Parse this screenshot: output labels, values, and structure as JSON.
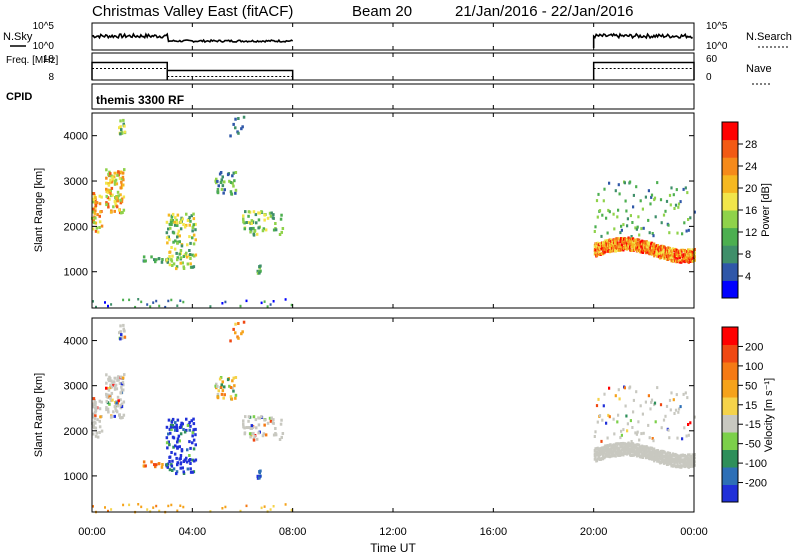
{
  "title": {
    "station": "Christmas Valley East (fitACF)",
    "beam": "Beam 20",
    "dates": "21/Jan/2016 - 22/Jan/2016"
  },
  "colors": {
    "power": [
      "#0000ff",
      "#2f57a8",
      "#3f8f6a",
      "#4caf50",
      "#8fd24a",
      "#f2e64a",
      "#f5b820",
      "#f58a1a",
      "#f25a14",
      "#ff0000"
    ],
    "velocity": [
      "#2030d8",
      "#2d6fb6",
      "#2e8f5a",
      "#7cd04a",
      "#c8c8c0",
      "#f5d34a",
      "#f5a21a",
      "#f57a14",
      "#f04812",
      "#ff0000"
    ],
    "gray": "#c8c8c0"
  },
  "chart_data": [
    {
      "type": "line",
      "panel": "noise",
      "ylabel": "N.Sky",
      "ylabel_right": "N.Search",
      "yticks": [
        "10^5",
        "10^0"
      ],
      "yticks_right": [
        "10^5",
        "10^0"
      ]
    },
    {
      "type": "line",
      "panel": "frequency",
      "ylabel": "Freq. [MHz]",
      "ylabel_right": "Nave",
      "yticks": [
        "18",
        "8"
      ],
      "yticks_right": [
        "60",
        "0"
      ],
      "ylim": [
        8,
        18
      ],
      "ylim_right": [
        0,
        60
      ],
      "segments": [
        {
          "x": [
            "00:00",
            "03:00"
          ],
          "freq": 14.5
        },
        {
          "x": [
            "03:00",
            "08:00"
          ],
          "freq": 11.5
        },
        {
          "x": [
            "20:00",
            "24:00"
          ],
          "freq": 14.5
        }
      ]
    },
    {
      "type": "table",
      "panel": "cpid",
      "label": "CPID",
      "value": "themis 3300 RF"
    },
    {
      "type": "heatmap",
      "panel": "power",
      "ylabel": "Slant Range [km]",
      "yticks": [
        "1000",
        "2000",
        "3000",
        "4000"
      ],
      "ylim": [
        200,
        4500
      ],
      "colorbar_label": "Power [dB]",
      "colorbar_ticks": [
        "4",
        "8",
        "12",
        "16",
        "20",
        "24",
        "28"
      ],
      "clim": [
        0,
        30
      ]
    },
    {
      "type": "heatmap",
      "panel": "velocity",
      "ylabel": "Slant Range [km]",
      "yticks": [
        "1000",
        "2000",
        "3000",
        "4000"
      ],
      "ylim": [
        200,
        4500
      ],
      "colorbar_label": "Velocity [m s⁻¹]",
      "colorbar_ticks": [
        "200",
        "100",
        "50",
        "15",
        "-15",
        "-50",
        "-100",
        "-200"
      ]
    }
  ],
  "xaxis": {
    "label": "Time UT",
    "ticks": [
      "00:00",
      "04:00",
      "08:00",
      "12:00",
      "16:00",
      "20:00",
      "00:00"
    ],
    "range_hours": [
      0,
      24
    ]
  }
}
